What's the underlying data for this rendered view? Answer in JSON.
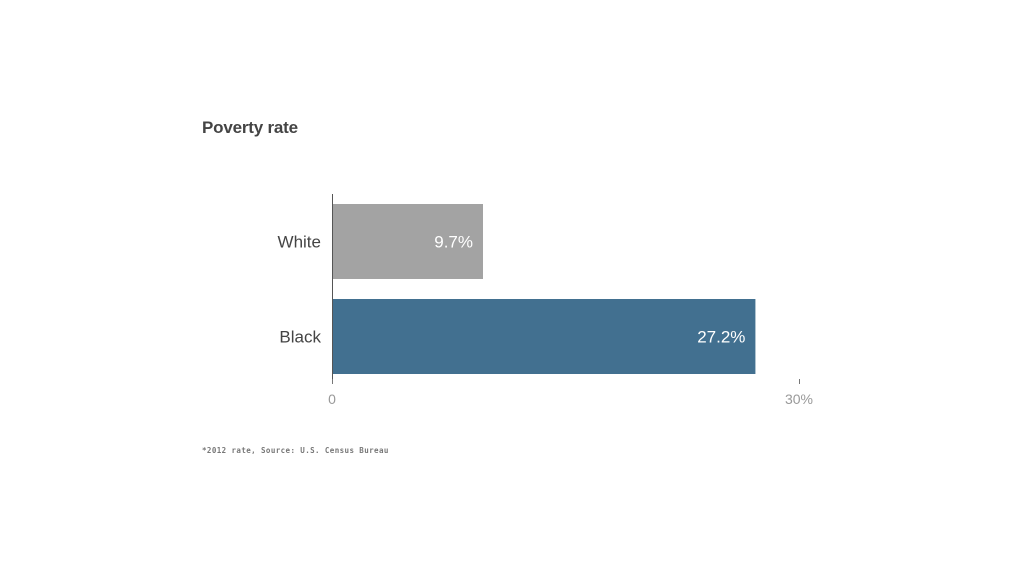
{
  "chart_data": {
    "type": "bar",
    "orientation": "horizontal",
    "title": "Poverty rate",
    "categories": [
      "White",
      "Black"
    ],
    "values": [
      9.7,
      27.2
    ],
    "value_labels": [
      "9.7%",
      "27.2%"
    ],
    "colors": [
      "#a3a3a3",
      "#427090"
    ],
    "xlim": [
      0,
      30
    ],
    "x_ticks": [
      {
        "value": 0,
        "label": "0"
      },
      {
        "value": 30,
        "label": "30%"
      }
    ],
    "grid": false,
    "footnote": "*2012 rate, Source: U.S. Census Bureau"
  }
}
